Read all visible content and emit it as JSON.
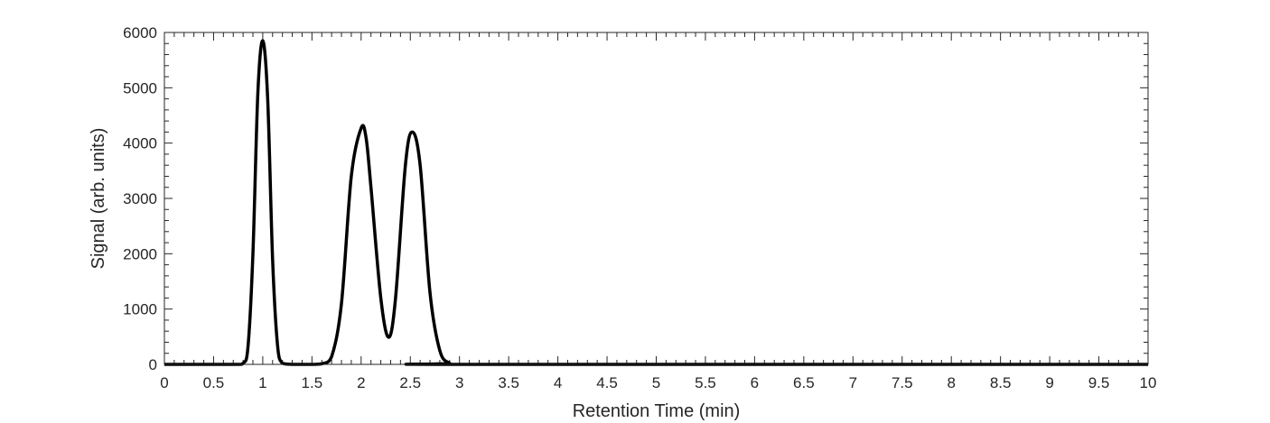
{
  "chart_data": {
    "type": "line",
    "title": "",
    "xlabel": "Retention Time (min)",
    "ylabel": "Signal (arb. units)",
    "xlim": [
      0,
      10
    ],
    "ylim": [
      0,
      6000
    ],
    "x_ticks": [
      0,
      0.5,
      1,
      1.5,
      2,
      2.5,
      3,
      3.5,
      4,
      4.5,
      5,
      5.5,
      6,
      6.5,
      7,
      7.5,
      8,
      8.5,
      9,
      9.5,
      10
    ],
    "x_tick_labels": [
      "0",
      "0.5",
      "1",
      "1.5",
      "2",
      "2.5",
      "3",
      "3.5",
      "4",
      "4.5",
      "5",
      "5.5",
      "6",
      "6.5",
      "7",
      "7.5",
      "8",
      "8.5",
      "9",
      "9.5",
      "10"
    ],
    "y_ticks": [
      0,
      1000,
      2000,
      3000,
      4000,
      5000,
      6000
    ],
    "y_tick_labels": [
      "0",
      "1000",
      "2000",
      "3000",
      "4000",
      "5000",
      "6000"
    ],
    "grid": false,
    "legend": "none",
    "line_color": "#000000",
    "series": [
      {
        "x": [
          0,
          0.7,
          0.8,
          0.85,
          0.9,
          0.95,
          1.0,
          1.05,
          1.1,
          1.15,
          1.2,
          1.3,
          1.5,
          1.6,
          1.7,
          1.8,
          1.9,
          2.0,
          2.05,
          2.1,
          2.2,
          2.28,
          2.35,
          2.45,
          2.52,
          2.6,
          2.7,
          2.8,
          2.9,
          3.0,
          10
        ],
        "values": [
          0,
          0,
          20,
          320,
          2000,
          4900,
          5850,
          4800,
          1900,
          350,
          20,
          0,
          0,
          10,
          140,
          1100,
          3400,
          4270,
          4100,
          3200,
          1200,
          490,
          1200,
          3600,
          4200,
          3600,
          1300,
          250,
          20,
          0,
          0
        ]
      }
    ]
  }
}
